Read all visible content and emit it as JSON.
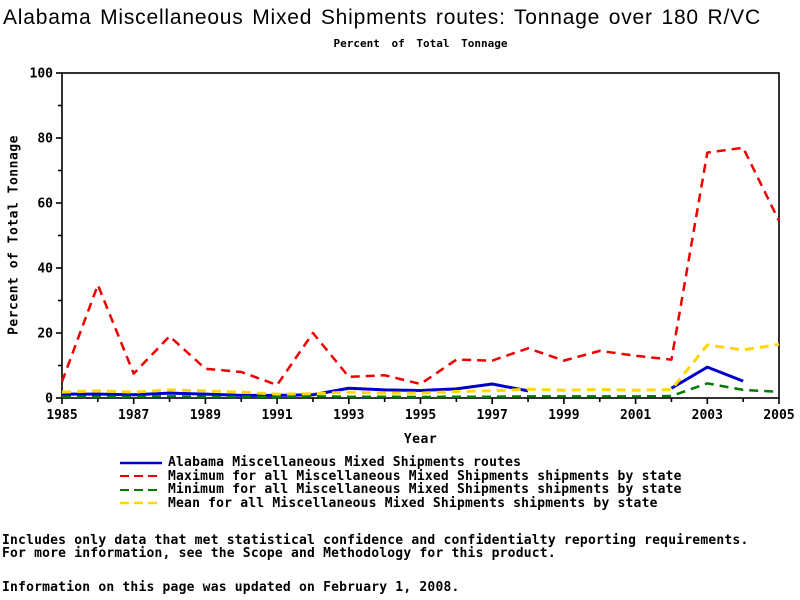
{
  "title": "Alabama Miscellaneous Mixed Shipments routes: Tonnage over 180 R/VC",
  "subtitle": "Percent of Total Tonnage",
  "footer": {
    "line1": "Includes only data that met statistical confidence and confidentialty reporting requirements.",
    "line2": "For more information, see the Scope and Methodology for this product.",
    "updated": "Information on this page was updated on February 1, 2008."
  },
  "colors": {
    "axis": "#000000",
    "background": "#ffffff",
    "alabama": "#0000CD",
    "maximum": "#EE0000",
    "minimum": "#007B00",
    "mean": "#FFD700"
  },
  "chart_data": {
    "type": "line",
    "title": "Alabama Miscellaneous Mixed Shipments routes: Tonnage over 180 R/VC",
    "subtitle": "Percent of Total Tonnage",
    "xlabel": "Year",
    "ylabel": "Percent of Total Tonnage",
    "grid": false,
    "legend_position": "bottom",
    "xlim": [
      1985,
      2005
    ],
    "ylim": [
      0,
      100
    ],
    "x": [
      1985,
      1986,
      1987,
      1988,
      1989,
      1990,
      1991,
      1992,
      1993,
      1994,
      1995,
      1996,
      1997,
      1998,
      1999,
      2000,
      2001,
      2002,
      2003,
      2004,
      2005
    ],
    "xticks": [
      1985,
      1987,
      1989,
      1991,
      1993,
      1995,
      1997,
      1999,
      2001,
      2003,
      2005
    ],
    "yticks": [
      0,
      20,
      40,
      60,
      80,
      100
    ],
    "y_minor_step": 10,
    "series": [
      {
        "name": "Alabama Miscellaneous Mixed Shipments routes",
        "color": "#0000CD",
        "style": "solid",
        "width": 3,
        "values": [
          1.2,
          1.2,
          1.0,
          1.5,
          1.2,
          0.8,
          0.8,
          1.0,
          3.0,
          2.5,
          2.3,
          2.8,
          4.3,
          2.2,
          null,
          null,
          null,
          3.0,
          9.5,
          5.2,
          null
        ]
      },
      {
        "name": "Maximum for all Miscellaneous Mixed Shipments shipments by state",
        "color": "#EE0000",
        "style": "dashed",
        "width": 2.5,
        "values": [
          5.0,
          34.8,
          7.5,
          19.0,
          9.0,
          8.0,
          4.0,
          20.0,
          6.5,
          7.0,
          4.3,
          11.8,
          11.5,
          15.3,
          11.5,
          14.5,
          13.0,
          11.8,
          75.5,
          77.0,
          54.5
        ]
      },
      {
        "name": "Minimum for all Miscellaneous Mixed Shipments shipments by state",
        "color": "#007B00",
        "style": "dashed",
        "width": 2.5,
        "values": [
          0.4,
          0.4,
          0.4,
          0.5,
          0.4,
          0.4,
          0.3,
          0.5,
          0.4,
          0.4,
          0.3,
          0.4,
          0.4,
          0.5,
          0.5,
          0.5,
          0.5,
          0.6,
          4.5,
          2.5,
          1.9
        ]
      },
      {
        "name": "Mean for all Miscellaneous Mixed Shipments shipments by state",
        "color": "#FFD700",
        "style": "dashed",
        "width": 3,
        "values": [
          1.8,
          2.2,
          1.8,
          2.5,
          2.2,
          1.8,
          1.2,
          1.3,
          1.8,
          1.5,
          1.5,
          2.0,
          2.2,
          2.7,
          2.4,
          2.6,
          2.4,
          2.6,
          16.3,
          14.8,
          16.5
        ]
      }
    ]
  }
}
